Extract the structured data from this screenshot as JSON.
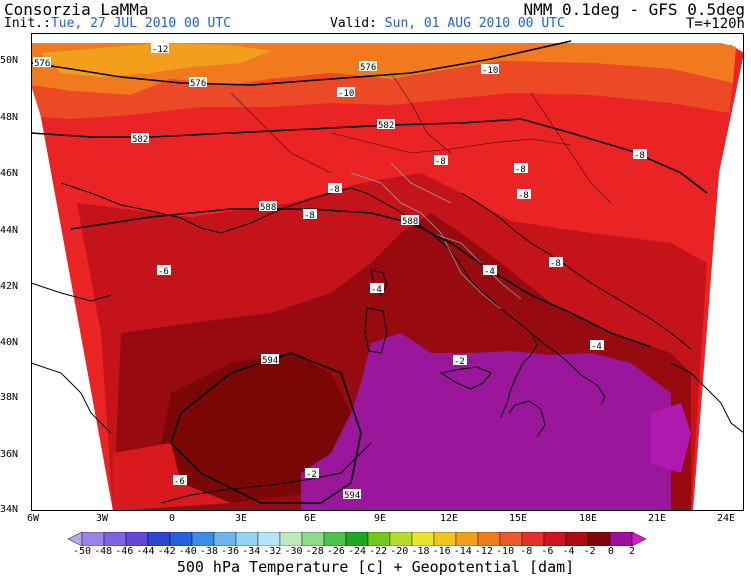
{
  "header": {
    "org": "Consorzia LaMMa",
    "model": "NMM 0.1deg - GFS 0.5deg",
    "init_label": "Init.:",
    "init_value": "Tue, 27 JUL 2010   00 UTC",
    "valid_label": "Valid:",
    "valid_value": "Sun, 01 AUG 2010   00 UTC",
    "lead_time": "T=+120h"
  },
  "map": {
    "lat_labels": [
      "50N",
      "48N",
      "46N",
      "44N",
      "42N",
      "40N",
      "38N",
      "36N",
      "34N"
    ],
    "lon_labels": [
      "6W",
      "3W",
      "0",
      "3E",
      "6E",
      "9E",
      "12E",
      "15E",
      "18E",
      "21E",
      "24E"
    ],
    "geopotential_labels": [
      "576",
      "576",
      "576",
      "582",
      "582",
      "588",
      "588",
      "594",
      "594"
    ],
    "temperature_labels": [
      "-12",
      "-10",
      "-10",
      "-8",
      "-8",
      "-8",
      "-8",
      "-8",
      "-8",
      "-8",
      "-6",
      "-4",
      "-4",
      "-4",
      "-2",
      "-2",
      "-6"
    ]
  },
  "colorbar": {
    "ticks": [
      "-50",
      "-48",
      "-46",
      "-44",
      "-42",
      "-40",
      "-38",
      "-36",
      "-34",
      "-32",
      "-30",
      "-28",
      "-26",
      "-24",
      "-22",
      "-20",
      "-18",
      "-16",
      "-14",
      "-12",
      "-10",
      "-8",
      "-6",
      "-4",
      "-2",
      "0",
      "2"
    ],
    "colors": [
      "#b8a7ee",
      "#9b83ea",
      "#7e62e2",
      "#6547d8",
      "#2f45d0",
      "#2463d8",
      "#3b8ee6",
      "#6cb6f0",
      "#96d2f4",
      "#b4e4f6",
      "#bde8c0",
      "#8edc8a",
      "#4cc44a",
      "#1ea81e",
      "#73c81c",
      "#b8dc2a",
      "#e8e430",
      "#f2c41e",
      "#f2a01c",
      "#f07c22",
      "#ea5a2a",
      "#e4302c",
      "#d0141e",
      "#aa0e14",
      "#820808",
      "#9c109c",
      "#d816d8"
    ]
  },
  "footer": "500 hPa Temperature [c] + Geopotential [dam]"
}
